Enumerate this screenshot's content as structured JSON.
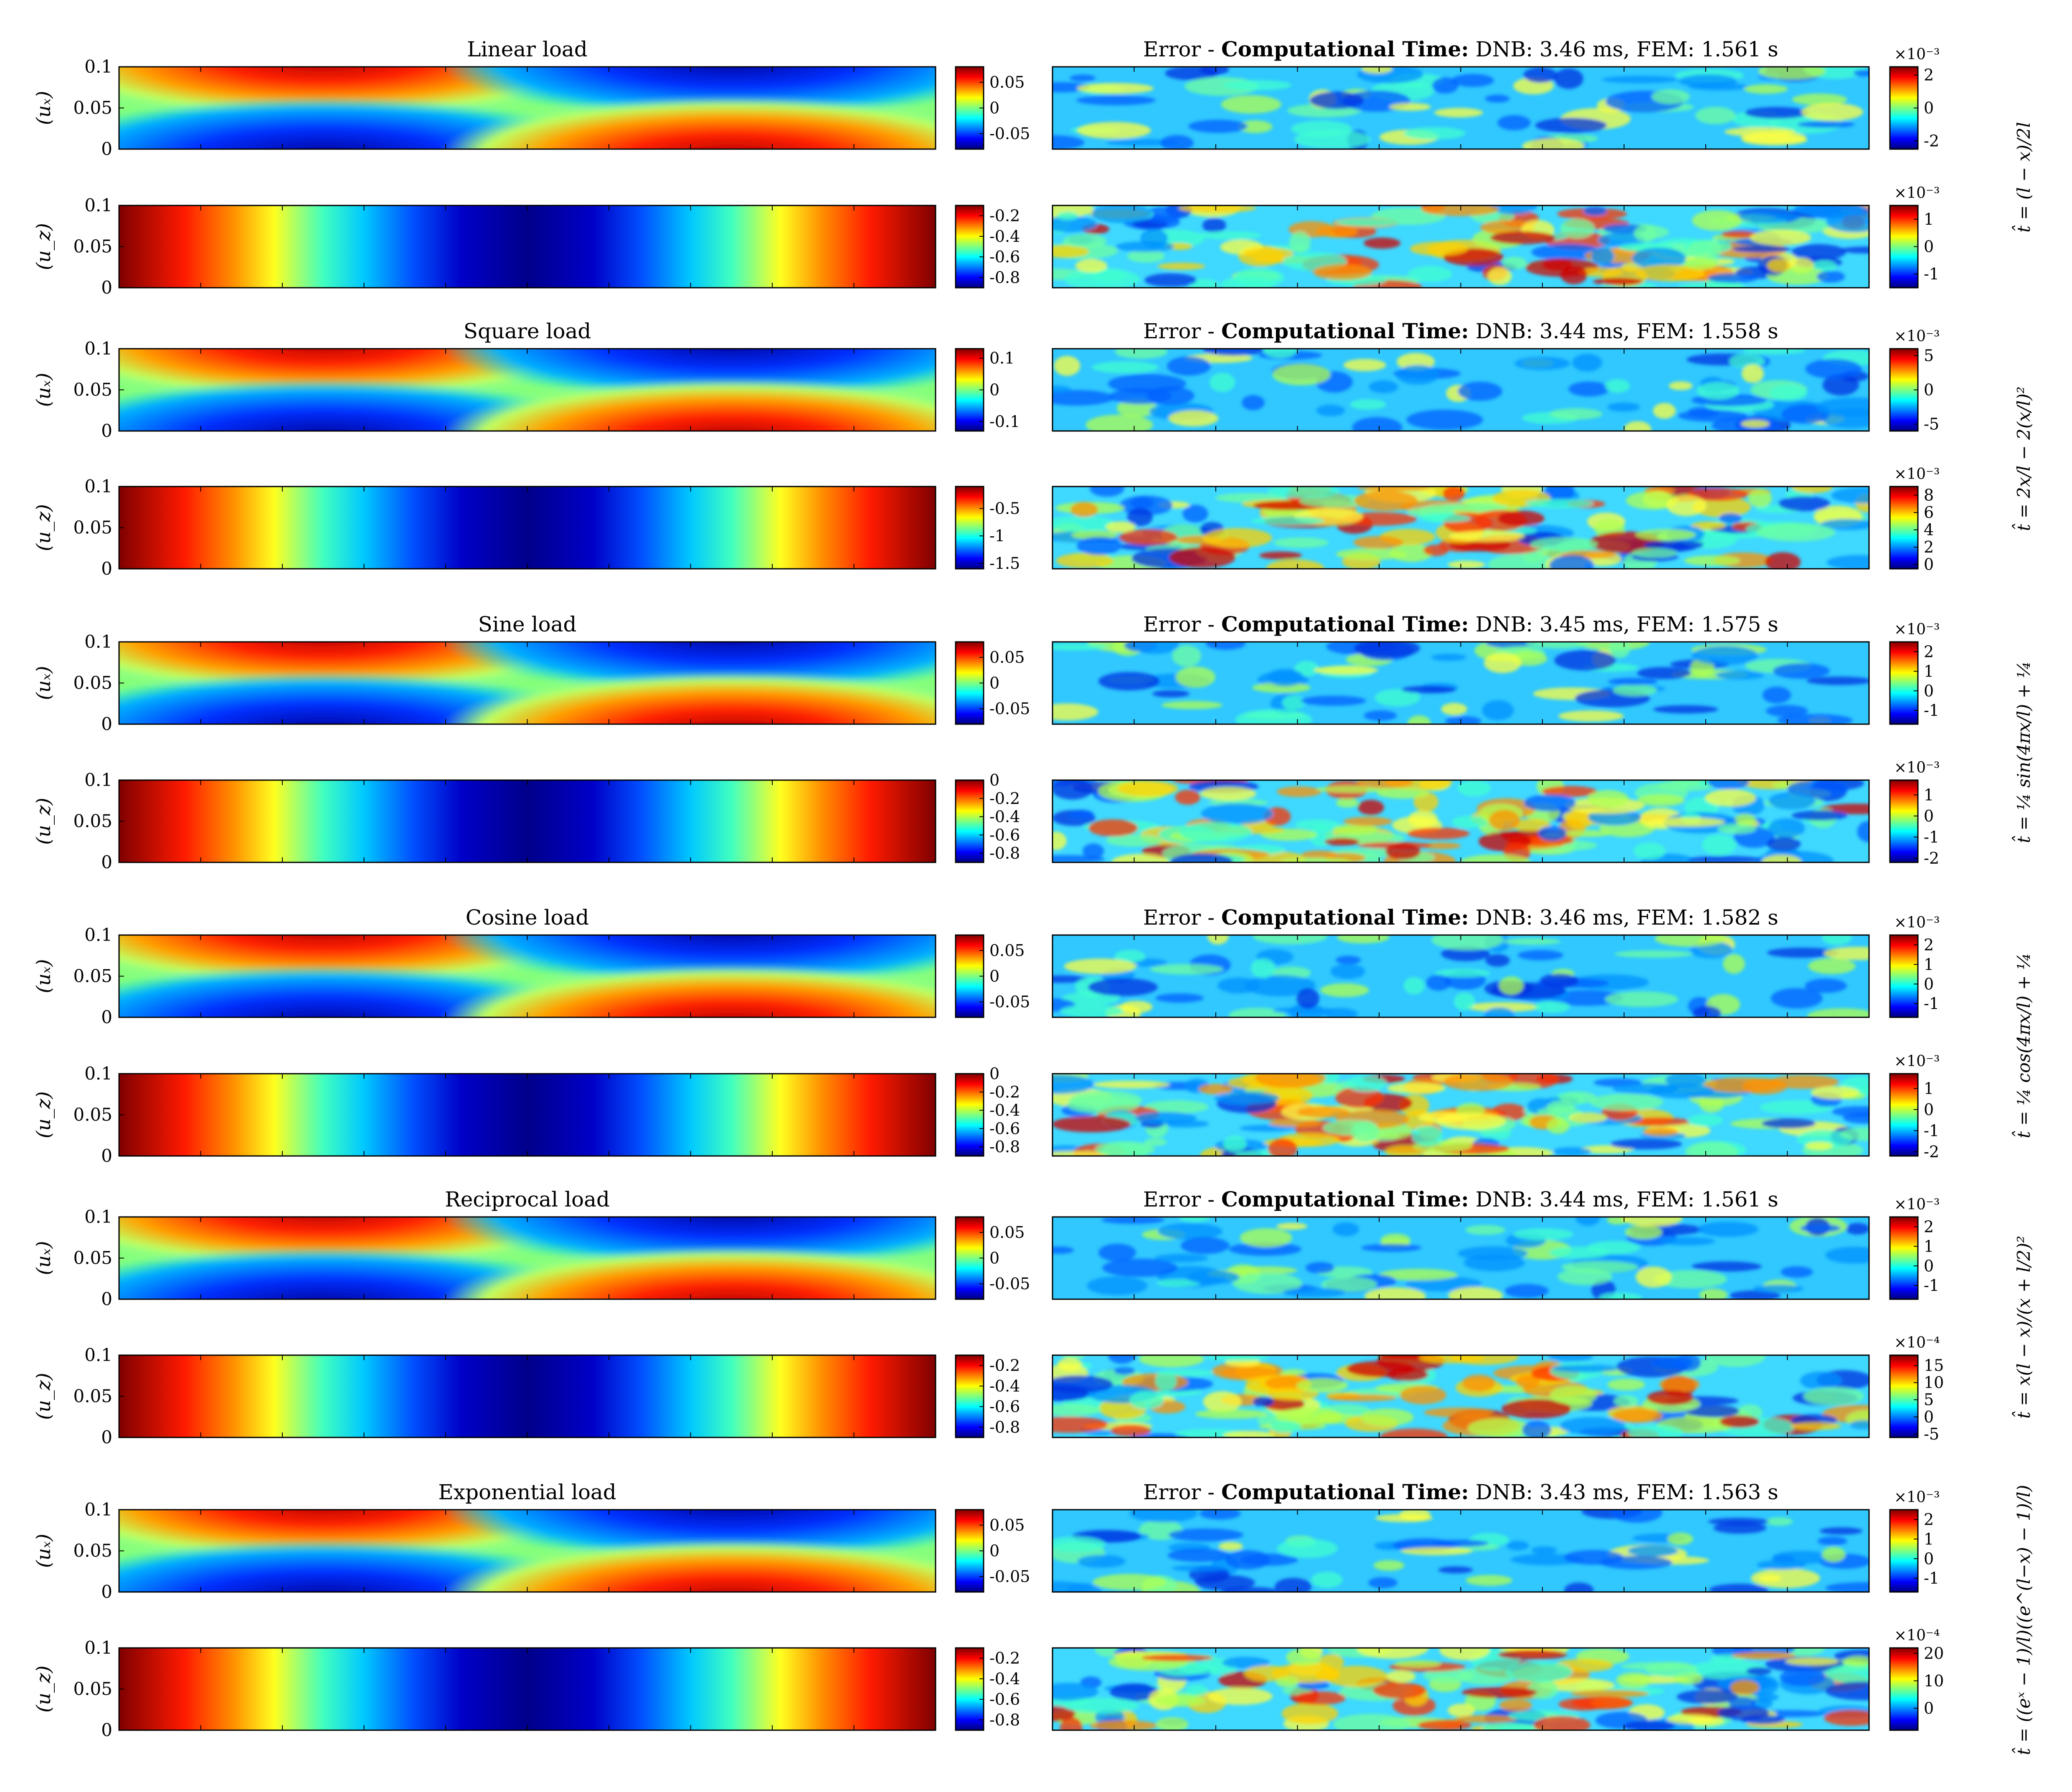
{
  "colors": {
    "jet_low": "#00007f",
    "jet_high": "#7f0000",
    "axis": "#000000",
    "background": "#ffffff"
  },
  "chart_data": {
    "type": "heatmap",
    "x_domain": [
      0,
      1
    ],
    "y_ticks": [
      "0.1",
      "0.05",
      "0"
    ],
    "ylim": [
      0,
      0.1
    ],
    "rows": [
      {
        "title": "Linear load",
        "error_title": {
          "prefix": "Error - ",
          "bold": "Computational Time:",
          "rest": " DNB: 3.46 ms, FEM: 1.561 s"
        },
        "formula": "t̂ = (l − x)/2l",
        "ux": {
          "ylabel": "(uₓ)",
          "cbar_ticks": [
            "0.05",
            "0",
            "-0.05"
          ],
          "range": [
            -0.08,
            0.08
          ]
        },
        "ux_err": {
          "multiplier": "×10⁻³",
          "cbar_ticks": [
            "2",
            "0",
            "-2"
          ],
          "range": [
            -2.5,
            2.5
          ]
        },
        "uz": {
          "ylabel": "(u_z)",
          "cbar_ticks": [
            "-0.2",
            "-0.4",
            "-0.6",
            "-0.8"
          ],
          "range": [
            -0.9,
            -0.1
          ]
        },
        "uz_err": {
          "multiplier": "×10⁻³",
          "cbar_ticks": [
            "1",
            "0",
            "-1"
          ],
          "range": [
            -1.5,
            1.5
          ]
        }
      },
      {
        "title": "Square load",
        "error_title": {
          "prefix": "Error - ",
          "bold": "Computational Time:",
          "rest": " DNB: 3.44 ms, FEM: 1.558 s"
        },
        "formula": "t̂ = 2x/l − 2(x/l)²",
        "ux": {
          "ylabel": "(uₓ)",
          "cbar_ticks": [
            "0.1",
            "0",
            "-0.1"
          ],
          "range": [
            -0.13,
            0.13
          ]
        },
        "ux_err": {
          "multiplier": "×10⁻³",
          "cbar_ticks": [
            "5",
            "0",
            "-5"
          ],
          "range": [
            -6,
            6
          ]
        },
        "uz": {
          "ylabel": "(u_z)",
          "cbar_ticks": [
            "-0.5",
            "-1",
            "-1.5"
          ],
          "range": [
            -1.6,
            -0.1
          ]
        },
        "uz_err": {
          "multiplier": "×10⁻³",
          "cbar_ticks": [
            "8",
            "6",
            "4",
            "2",
            "0"
          ],
          "range": [
            -0.5,
            9
          ]
        }
      },
      {
        "title": "Sine load",
        "error_title": {
          "prefix": "Error - ",
          "bold": "Computational Time:",
          "rest": " DNB: 3.45 ms, FEM: 1.575 s"
        },
        "formula": "t̂ = ¼ sin(4πx/l) + ¼",
        "ux": {
          "ylabel": "(uₓ)",
          "cbar_ticks": [
            "0.05",
            "0",
            "-0.05"
          ],
          "range": [
            -0.08,
            0.08
          ]
        },
        "ux_err": {
          "multiplier": "×10⁻³",
          "cbar_ticks": [
            "2",
            "1",
            "0",
            "-1"
          ],
          "range": [
            -1.7,
            2.5
          ]
        },
        "uz": {
          "ylabel": "(u_z)",
          "cbar_ticks": [
            "0",
            "-0.2",
            "-0.4",
            "-0.6",
            "-0.8"
          ],
          "range": [
            -0.9,
            0
          ]
        },
        "uz_err": {
          "multiplier": "×10⁻³",
          "cbar_ticks": [
            "1",
            "0",
            "-1",
            "-2"
          ],
          "range": [
            -2.2,
            1.7
          ]
        }
      },
      {
        "title": "Cosine load",
        "error_title": {
          "prefix": "Error - ",
          "bold": "Computational Time:",
          "rest": " DNB: 3.46 ms, FEM: 1.582 s"
        },
        "formula": "t̂ = ¼ cos(4πx/l) + ¼",
        "ux": {
          "ylabel": "(uₓ)",
          "cbar_ticks": [
            "0.05",
            "0",
            "-0.05"
          ],
          "range": [
            -0.08,
            0.08
          ]
        },
        "ux_err": {
          "multiplier": "×10⁻³",
          "cbar_ticks": [
            "2",
            "1",
            "0",
            "-1"
          ],
          "range": [
            -1.7,
            2.5
          ]
        },
        "uz": {
          "ylabel": "(u_z)",
          "cbar_ticks": [
            "0",
            "-0.2",
            "-0.4",
            "-0.6",
            "-0.8"
          ],
          "range": [
            -0.9,
            0
          ]
        },
        "uz_err": {
          "multiplier": "×10⁻³",
          "cbar_ticks": [
            "1",
            "0",
            "-1",
            "-2"
          ],
          "range": [
            -2.2,
            1.7
          ]
        }
      },
      {
        "title": "Reciprocal load",
        "error_title": {
          "prefix": "Error - ",
          "bold": "Computational Time:",
          "rest": " DNB: 3.44 ms, FEM: 1.561 s"
        },
        "formula": "t̂ = x(l − x)/(x + l/2)²",
        "ux": {
          "ylabel": "(uₓ)",
          "cbar_ticks": [
            "0.05",
            "0",
            "-0.05"
          ],
          "range": [
            -0.08,
            0.08
          ]
        },
        "ux_err": {
          "multiplier": "×10⁻³",
          "cbar_ticks": [
            "2",
            "1",
            "0",
            "-1"
          ],
          "range": [
            -1.7,
            2.5
          ]
        },
        "uz": {
          "ylabel": "(u_z)",
          "cbar_ticks": [
            "-0.2",
            "-0.4",
            "-0.6",
            "-0.8"
          ],
          "range": [
            -0.9,
            -0.1
          ]
        },
        "uz_err": {
          "multiplier": "×10⁻⁴",
          "cbar_ticks": [
            "15",
            "10",
            "5",
            "0",
            "-5"
          ],
          "range": [
            -6,
            18
          ]
        }
      },
      {
        "title": "Exponential load",
        "error_title": {
          "prefix": "Error - ",
          "bold": "Computational Time:",
          "rest": " DNB: 3.43 ms, FEM: 1.563 s"
        },
        "formula": "t̂ = ((eˣ − 1)/l)((e^(l−x) − 1)/l)",
        "ux": {
          "ylabel": "(uₓ)",
          "cbar_ticks": [
            "0.05",
            "0",
            "-0.05"
          ],
          "range": [
            -0.08,
            0.08
          ]
        },
        "ux_err": {
          "multiplier": "×10⁻³",
          "cbar_ticks": [
            "2",
            "1",
            "0",
            "-1"
          ],
          "range": [
            -1.7,
            2.5
          ]
        },
        "uz": {
          "ylabel": "(u_z)",
          "cbar_ticks": [
            "-0.2",
            "-0.4",
            "-0.6",
            "-0.8"
          ],
          "range": [
            -0.9,
            -0.1
          ]
        },
        "uz_err": {
          "multiplier": "×10⁻⁴",
          "cbar_ticks": [
            "20",
            "10",
            "0"
          ],
          "range": [
            -8,
            22
          ]
        }
      }
    ]
  }
}
